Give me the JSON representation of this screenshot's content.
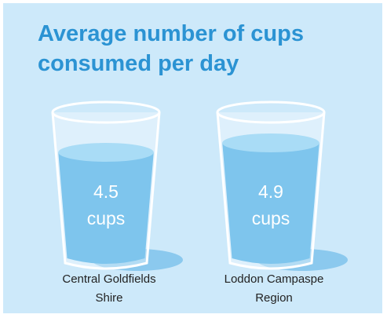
{
  "chart_data": {
    "type": "glass",
    "title": "Average number of cups consumed per day",
    "categories": [
      "Central Goldfields Shire",
      "Loddon Campaspe Region"
    ],
    "values": [
      4.5,
      4.9
    ],
    "unit": "cups"
  }
}
